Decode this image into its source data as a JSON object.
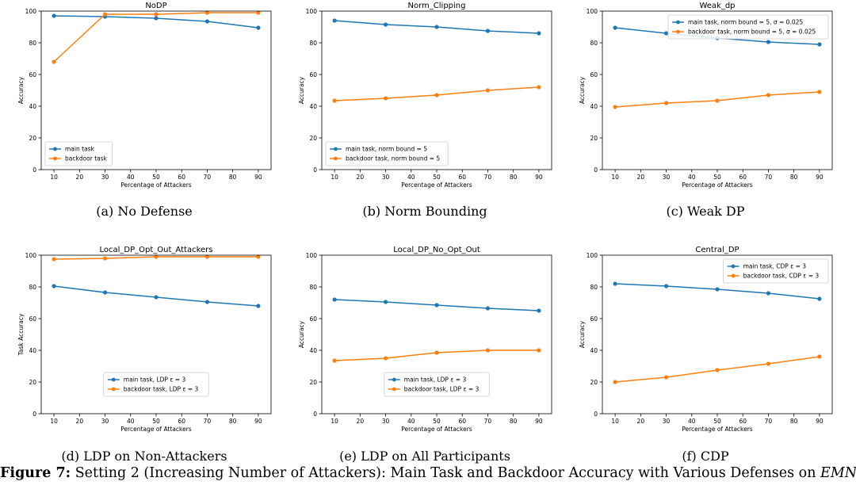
{
  "figure": {
    "caption_label": "Figure 7:",
    "caption_text": " Setting 2 (Increasing Number of Attackers): Main Task and Backdoor Accuracy with Various Defenses on ",
    "caption_dataset": "EMNIST",
    "caption_end": ".",
    "colors": {
      "main": "#1f77b4",
      "backdoor": "#ff7f0e"
    }
  },
  "chart_data": [
    {
      "type": "line",
      "title": "NoDP",
      "subcaption": "(a)  No Defense",
      "xlabel": "Percentage of Attackers",
      "ylabel": "Accuracy",
      "xlim": [
        5,
        95
      ],
      "ylim": [
        0,
        100
      ],
      "xticks": [
        10,
        20,
        30,
        40,
        50,
        60,
        70,
        80,
        90
      ],
      "yticks": [
        0,
        20,
        40,
        60,
        80,
        100
      ],
      "x": [
        10,
        30,
        50,
        70,
        90
      ],
      "series": [
        {
          "name": "main task",
          "values": [
            97,
            96.5,
            95.5,
            93.5,
            89.5
          ]
        },
        {
          "name": "backdoor task",
          "values": [
            68,
            98,
            98,
            99,
            99
          ]
        }
      ],
      "legend": "bottom-left"
    },
    {
      "type": "line",
      "title": "Norm_Clipping",
      "subcaption": "(b)  Norm Bounding",
      "xlabel": "Percentage of Attackers",
      "ylabel": "Accuracy",
      "xlim": [
        5,
        95
      ],
      "ylim": [
        0,
        100
      ],
      "xticks": [
        10,
        20,
        30,
        40,
        50,
        60,
        70,
        80,
        90
      ],
      "yticks": [
        0,
        20,
        40,
        60,
        80,
        100
      ],
      "x": [
        10,
        30,
        50,
        70,
        90
      ],
      "series": [
        {
          "name": "main task, norm bound = 5",
          "values": [
            94,
            91.5,
            90,
            87.5,
            86
          ]
        },
        {
          "name": "backdoor task, norm bound = 5",
          "values": [
            43.5,
            45,
            47,
            50,
            52
          ]
        }
      ],
      "legend": "bottom-left"
    },
    {
      "type": "line",
      "title": "Weak_dp",
      "subcaption": "(c)  Weak DP",
      "xlabel": "Percentage of Attackers",
      "ylabel": "Accuracy",
      "xlim": [
        5,
        95
      ],
      "ylim": [
        0,
        100
      ],
      "xticks": [
        10,
        20,
        30,
        40,
        50,
        60,
        70,
        80,
        90
      ],
      "yticks": [
        0,
        20,
        40,
        60,
        80,
        100
      ],
      "x": [
        10,
        30,
        50,
        70,
        90
      ],
      "series": [
        {
          "name": "main task, norm bound = 5, σ = 0.025",
          "values": [
            89.5,
            86,
            83,
            80.5,
            79
          ]
        },
        {
          "name": "backdoor task, norm bound = 5, σ = 0.025",
          "values": [
            39.5,
            42,
            43.5,
            47,
            49
          ]
        }
      ],
      "legend": "top-right"
    },
    {
      "type": "line",
      "title": "Local_DP_Opt_Out_Attackers",
      "subcaption": "(d)  LDP on Non-Attackers",
      "xlabel": "Percentage of Attackers",
      "ylabel": "Task Accuracy",
      "xlim": [
        5,
        95
      ],
      "ylim": [
        0,
        100
      ],
      "xticks": [
        10,
        20,
        30,
        40,
        50,
        60,
        70,
        80,
        90
      ],
      "yticks": [
        0,
        20,
        40,
        60,
        80,
        100
      ],
      "x": [
        10,
        30,
        50,
        70,
        90
      ],
      "series": [
        {
          "name": "main task, LDP ε = 3",
          "values": [
            80.5,
            76.5,
            73.5,
            70.5,
            68
          ]
        },
        {
          "name": "backdoor task, LDP ε = 3",
          "values": [
            97.5,
            98,
            99,
            99,
            99
          ]
        }
      ],
      "legend": "bottom-center"
    },
    {
      "type": "line",
      "title": "Local_DP_No_Opt_Out",
      "subcaption": "(e)  LDP on All Participants",
      "xlabel": "Percentage of Attackers",
      "ylabel": "Accuracy",
      "xlim": [
        5,
        95
      ],
      "ylim": [
        0,
        100
      ],
      "xticks": [
        10,
        20,
        30,
        40,
        50,
        60,
        70,
        80,
        90
      ],
      "yticks": [
        0,
        20,
        40,
        60,
        80,
        100
      ],
      "x": [
        10,
        30,
        50,
        70,
        90
      ],
      "series": [
        {
          "name": "main task, LDP ε = 3",
          "values": [
            72,
            70.5,
            68.5,
            66.5,
            65
          ]
        },
        {
          "name": "backdoor task, LDP ε = 3",
          "values": [
            33.5,
            35,
            38.5,
            40,
            40
          ]
        }
      ],
      "legend": "bottom-center"
    },
    {
      "type": "line",
      "title": "Central_DP",
      "subcaption": "(f)  CDP",
      "xlabel": "Percentage of Attackers",
      "ylabel": "Accuracy",
      "xlim": [
        5,
        95
      ],
      "ylim": [
        0,
        100
      ],
      "xticks": [
        10,
        20,
        30,
        40,
        50,
        60,
        70,
        80,
        90
      ],
      "yticks": [
        0,
        20,
        40,
        60,
        80,
        100
      ],
      "x": [
        10,
        30,
        50,
        70,
        90
      ],
      "series": [
        {
          "name": "main task, CDP ε = 3",
          "values": [
            82,
            80.5,
            78.5,
            76,
            72.5
          ]
        },
        {
          "name": "backdoor task, CDP ε = 3",
          "values": [
            20,
            23,
            27.5,
            31.5,
            36
          ]
        }
      ],
      "legend": "top-right"
    }
  ]
}
